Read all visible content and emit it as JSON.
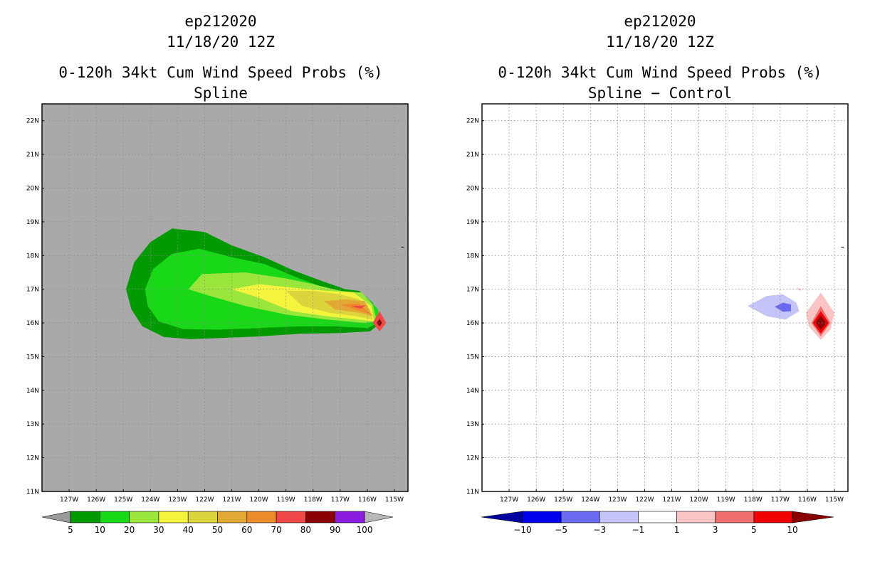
{
  "chart_data": [
    {
      "type": "contour",
      "title": "ep212020",
      "subtitle": "11/18/20 12Z",
      "product": "0-120h 34kt Cum Wind Speed Probs (%)",
      "method": "Spline",
      "background": "#a9a9a9",
      "xlim": [
        -128,
        -114.5
      ],
      "ylim": [
        11,
        22.5
      ],
      "x_ticks": [
        "127W",
        "126W",
        "125W",
        "124W",
        "123W",
        "122W",
        "121W",
        "120W",
        "119W",
        "118W",
        "117W",
        "116W",
        "115W"
      ],
      "y_ticks": [
        "11N",
        "12N",
        "13N",
        "14N",
        "15N",
        "16N",
        "17N",
        "18N",
        "19N",
        "20N",
        "21N",
        "22N"
      ],
      "colorbar": {
        "labels": [
          "5",
          "10",
          "20",
          "30",
          "40",
          "50",
          "60",
          "70",
          "80",
          "90",
          "100"
        ],
        "colors": [
          "#9a9a9a",
          "#009900",
          "#18d818",
          "#9be63c",
          "#f4f43e",
          "#dcd43c",
          "#e2aa34",
          "#ec8a2c",
          "#f04848",
          "#8a0000",
          "#8c1ce0",
          "#b8b8b8"
        ]
      },
      "contours": [
        {
          "level": 5,
          "color": "#009900",
          "polygon": [
            [
              -124.9,
              17.0
            ],
            [
              -124.6,
              17.8
            ],
            [
              -124,
              18.4
            ],
            [
              -123.2,
              18.8
            ],
            [
              -122,
              18.7
            ],
            [
              -121,
              18.3
            ],
            [
              -119.8,
              17.95
            ],
            [
              -118.7,
              17.55
            ],
            [
              -117.7,
              17.25
            ],
            [
              -116.8,
              17.0
            ],
            [
              -116.3,
              16.95
            ],
            [
              -115.8,
              16.6
            ],
            [
              -115.5,
              16.0
            ],
            [
              -115.9,
              15.75
            ],
            [
              -117,
              15.7
            ],
            [
              -118.5,
              15.68
            ],
            [
              -120,
              15.6
            ],
            [
              -121.5,
              15.55
            ],
            [
              -122.5,
              15.52
            ],
            [
              -123.5,
              15.58
            ],
            [
              -124.3,
              15.9
            ],
            [
              -124.7,
              16.4
            ]
          ]
        },
        {
          "level": 10,
          "color": "#18d818",
          "polygon": [
            [
              -124.2,
              17.0
            ],
            [
              -123.9,
              17.6
            ],
            [
              -123.2,
              18.05
            ],
            [
              -122.2,
              18.2
            ],
            [
              -121,
              17.95
            ],
            [
              -119.8,
              17.75
            ],
            [
              -118.6,
              17.35
            ],
            [
              -117.6,
              17.05
            ],
            [
              -116.6,
              16.9
            ],
            [
              -116,
              16.75
            ],
            [
              -115.6,
              16.4
            ],
            [
              -115.6,
              16.0
            ],
            [
              -116,
              15.85
            ],
            [
              -117.2,
              15.9
            ],
            [
              -118.5,
              15.9
            ],
            [
              -120,
              15.85
            ],
            [
              -121.5,
              15.8
            ],
            [
              -122.8,
              15.82
            ],
            [
              -123.7,
              16.05
            ],
            [
              -124.1,
              16.5
            ]
          ]
        },
        {
          "level": 20,
          "color": "#9be63c",
          "polygon": [
            [
              -122.6,
              17.0
            ],
            [
              -122.1,
              17.45
            ],
            [
              -120.5,
              17.5
            ],
            [
              -119,
              17.32
            ],
            [
              -118,
              17.15
            ],
            [
              -117,
              16.95
            ],
            [
              -116.2,
              16.9
            ],
            [
              -115.8,
              16.55
            ],
            [
              -115.65,
              16.05
            ],
            [
              -116.1,
              16.0
            ],
            [
              -117.5,
              16.1
            ],
            [
              -119,
              16.25
            ],
            [
              -120.5,
              16.5
            ],
            [
              -121.8,
              16.8
            ]
          ]
        },
        {
          "level": 30,
          "color": "#f4f43e",
          "polygon": [
            [
              -121,
              17.0
            ],
            [
              -120,
              17.15
            ],
            [
              -118.8,
              17.05
            ],
            [
              -117.5,
              16.95
            ],
            [
              -116.5,
              16.9
            ],
            [
              -115.85,
              16.5
            ],
            [
              -115.75,
              16.05
            ],
            [
              -116.3,
              16.1
            ],
            [
              -117.5,
              16.2
            ],
            [
              -118.8,
              16.35
            ],
            [
              -120,
              16.75
            ]
          ]
        },
        {
          "level": 40,
          "color": "#dcd43c",
          "polygon": [
            [
              -119,
              16.95
            ],
            [
              -118,
              16.95
            ],
            [
              -117,
              16.85
            ],
            [
              -116.3,
              16.7
            ],
            [
              -115.9,
              16.4
            ],
            [
              -115.8,
              16.1
            ],
            [
              -116.4,
              16.2
            ],
            [
              -117.4,
              16.3
            ],
            [
              -118.4,
              16.5
            ]
          ]
        },
        {
          "level": 50,
          "color": "#e2aa34",
          "polygon": [
            [
              -117.6,
              16.65
            ],
            [
              -116.8,
              16.7
            ],
            [
              -116.1,
              16.65
            ],
            [
              -115.8,
              16.2
            ],
            [
              -116.3,
              16.3
            ],
            [
              -117.2,
              16.4
            ]
          ]
        },
        {
          "level": 60,
          "color": "#ec8a2c",
          "polygon": [
            [
              -117,
              16.55
            ],
            [
              -116.3,
              16.58
            ],
            [
              -115.85,
              16.25
            ],
            [
              -116.4,
              16.38
            ]
          ]
        },
        {
          "level": 70,
          "color": "#f04848",
          "polygon": [
            [
              -116.6,
              16.5
            ],
            [
              -116.05,
              16.52
            ],
            [
              -116.25,
              16.42
            ]
          ]
        },
        {
          "level": 70,
          "color": "#f04848",
          "polygon": [
            [
              -115.55,
              16.35
            ],
            [
              -115.3,
              16.0
            ],
            [
              -115.55,
              15.75
            ],
            [
              -115.8,
              16.0
            ]
          ]
        },
        {
          "level": 80,
          "color": "#8a0000",
          "polygon": [
            [
              -115.55,
              16.12
            ],
            [
              -115.45,
              16.0
            ],
            [
              -115.55,
              15.9
            ],
            [
              -115.65,
              16.0
            ]
          ]
        }
      ]
    },
    {
      "type": "contour",
      "title": "ep212020",
      "subtitle": "11/18/20 12Z",
      "product": "0-120h 34kt Cum Wind Speed Probs (%)",
      "method": "Spline − Control",
      "background": "#ffffff",
      "xlim": [
        -128,
        -114.5
      ],
      "ylim": [
        11,
        22.5
      ],
      "x_ticks": [
        "127W",
        "126W",
        "125W",
        "124W",
        "123W",
        "122W",
        "121W",
        "120W",
        "119W",
        "118W",
        "117W",
        "116W",
        "115W"
      ],
      "y_ticks": [
        "11N",
        "12N",
        "13N",
        "14N",
        "15N",
        "16N",
        "17N",
        "18N",
        "19N",
        "20N",
        "21N",
        "22N"
      ],
      "colorbar": {
        "labels": [
          "−10",
          "−5",
          "−3",
          "−1",
          "1",
          "3",
          "5",
          "10"
        ],
        "colors": [
          "#0000a0",
          "#0000f0",
          "#6a6af0",
          "#c4c4f8",
          "#ffffff",
          "#f8c4c4",
          "#f07070",
          "#f00000",
          "#8a0000"
        ]
      },
      "contours": [
        {
          "level": -1,
          "color": "#c4c4f8",
          "polygon": [
            [
              -118.2,
              16.5
            ],
            [
              -117.5,
              16.8
            ],
            [
              -116.9,
              16.85
            ],
            [
              -116.4,
              16.6
            ],
            [
              -116.3,
              16.35
            ],
            [
              -116.8,
              16.1
            ],
            [
              -117.5,
              16.2
            ]
          ]
        },
        {
          "level": -3,
          "color": "#6a6af0",
          "polygon": [
            [
              -117.2,
              16.48
            ],
            [
              -116.9,
              16.6
            ],
            [
              -116.6,
              16.55
            ],
            [
              -116.6,
              16.35
            ],
            [
              -116.9,
              16.33
            ]
          ]
        },
        {
          "level": 1,
          "color": "#f8c4c4",
          "polygon": [
            [
              -115.5,
              16.9
            ],
            [
              -115.0,
              16.3
            ],
            [
              -115.15,
              15.8
            ],
            [
              -115.5,
              15.5
            ],
            [
              -115.95,
              15.9
            ],
            [
              -116.05,
              16.3
            ]
          ]
        },
        {
          "level": 1,
          "color": "#f8c4c4",
          "polygon": [
            [
              -116.4,
              17.05
            ],
            [
              -116.2,
              17.0
            ],
            [
              -116.3,
              16.95
            ]
          ]
        },
        {
          "level": 3,
          "color": "#f07070",
          "polygon": [
            [
              -115.5,
              16.5
            ],
            [
              -115.15,
              16.0
            ],
            [
              -115.5,
              15.6
            ],
            [
              -115.85,
              16.0
            ]
          ]
        },
        {
          "level": 5,
          "color": "#f00000",
          "polygon": [
            [
              -115.5,
              16.35
            ],
            [
              -115.2,
              16.0
            ],
            [
              -115.5,
              15.68
            ],
            [
              -115.8,
              16.0
            ]
          ]
        },
        {
          "level": 10,
          "color": "#8a0000",
          "polygon": [
            [
              -115.5,
              16.22
            ],
            [
              -115.3,
              16.0
            ],
            [
              -115.5,
              15.8
            ],
            [
              -115.7,
              16.0
            ]
          ]
        }
      ]
    }
  ]
}
